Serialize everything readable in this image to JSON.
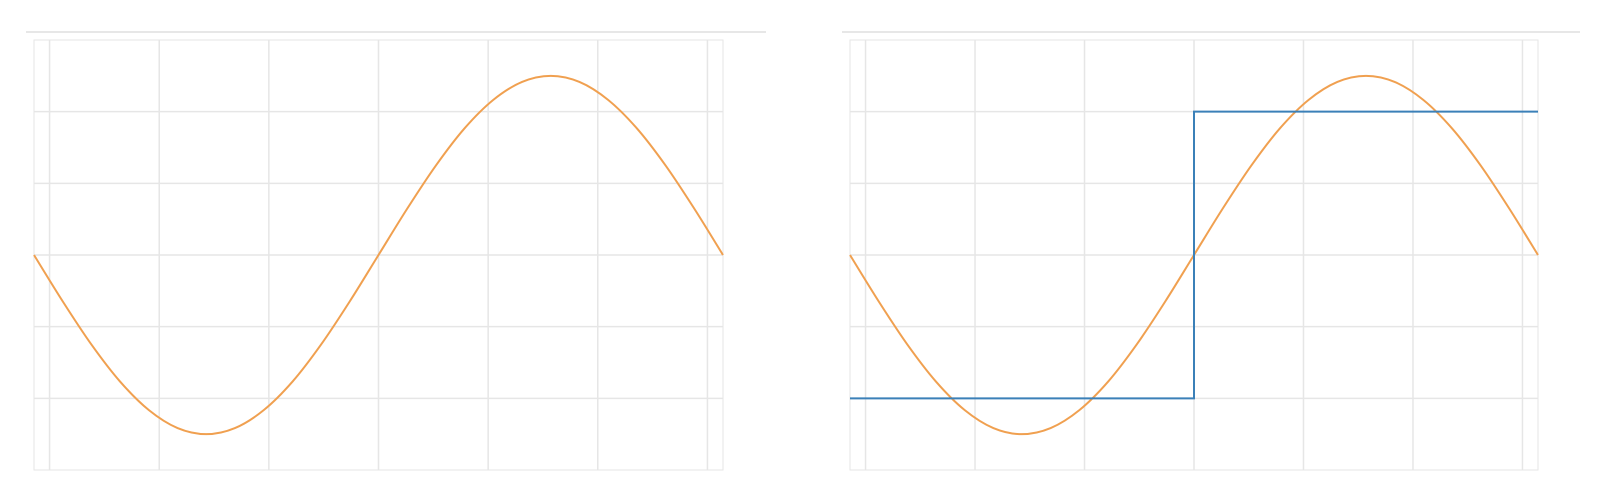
{
  "chart_data": [
    {
      "type": "line",
      "xlim": [
        -3.142,
        3.142
      ],
      "ylim": [
        -3,
        3
      ],
      "xticks": [
        -3,
        -2,
        -1,
        0,
        1,
        2,
        3
      ],
      "yticks": [
        -2,
        -1,
        0,
        1,
        2
      ],
      "grid": true,
      "series": [
        {
          "color": "#f0a050",
          "x": [
            -3.142,
            -2.88,
            -2.618,
            -2.356,
            -2.094,
            -1.833,
            -1.571,
            -1.309,
            -1.047,
            -0.785,
            -0.524,
            -0.262,
            0,
            0.262,
            0.524,
            0.785,
            1.047,
            1.309,
            1.571,
            1.833,
            2.094,
            2.356,
            2.618,
            2.88,
            3.142
          ],
          "values": [
            0,
            -0.647,
            -1.25,
            -1.768,
            -2.165,
            -2.415,
            -2.5,
            -2.415,
            -2.165,
            -1.768,
            -1.25,
            -0.647,
            0,
            0.647,
            1.25,
            1.768,
            2.165,
            2.415,
            2.5,
            2.415,
            2.165,
            1.768,
            1.25,
            0.647,
            0
          ]
        }
      ]
    },
    {
      "type": "line",
      "xlim": [
        -3.142,
        3.142
      ],
      "ylim": [
        -3,
        3
      ],
      "xticks": [
        -3,
        -2,
        -1,
        0,
        1,
        2,
        3
      ],
      "yticks": [
        -2,
        -1,
        0,
        1,
        2
      ],
      "grid": true,
      "series": [
        {
          "color": "#f0a050",
          "x": [
            -3.142,
            -2.88,
            -2.618,
            -2.356,
            -2.094,
            -1.833,
            -1.571,
            -1.309,
            -1.047,
            -0.785,
            -0.524,
            -0.262,
            0,
            0.262,
            0.524,
            0.785,
            1.047,
            1.309,
            1.571,
            1.833,
            2.094,
            2.356,
            2.618,
            2.88,
            3.142
          ],
          "values": [
            0,
            -0.647,
            -1.25,
            -1.768,
            -2.165,
            -2.415,
            -2.5,
            -2.415,
            -2.165,
            -1.768,
            -1.25,
            -0.647,
            0,
            0.647,
            1.25,
            1.768,
            2.165,
            2.415,
            2.5,
            2.415,
            2.165,
            1.768,
            1.25,
            0.647,
            0
          ]
        },
        {
          "color": "#3b80b8",
          "x": [
            -3.142,
            0,
            0,
            3.142
          ],
          "values": [
            -2,
            -2,
            2,
            2
          ]
        }
      ]
    }
  ]
}
